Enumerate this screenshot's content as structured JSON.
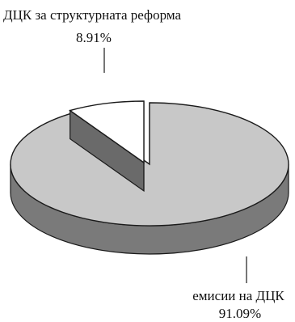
{
  "chart_data": {
    "type": "pie",
    "style": "3d-exploded",
    "slices": [
      {
        "label": "емисии на ДЦК",
        "value": 91.09,
        "value_text": "91.09%",
        "color": "#c8c8c8",
        "side_color": "#7a7a7a"
      },
      {
        "label": "ДЦК за структурната реформа",
        "value": 8.91,
        "value_text": "8.91%",
        "color": "#ffffff",
        "side_color": "#6a6a6a",
        "exploded": true
      }
    ],
    "outline_color": "#1a1a1a"
  }
}
